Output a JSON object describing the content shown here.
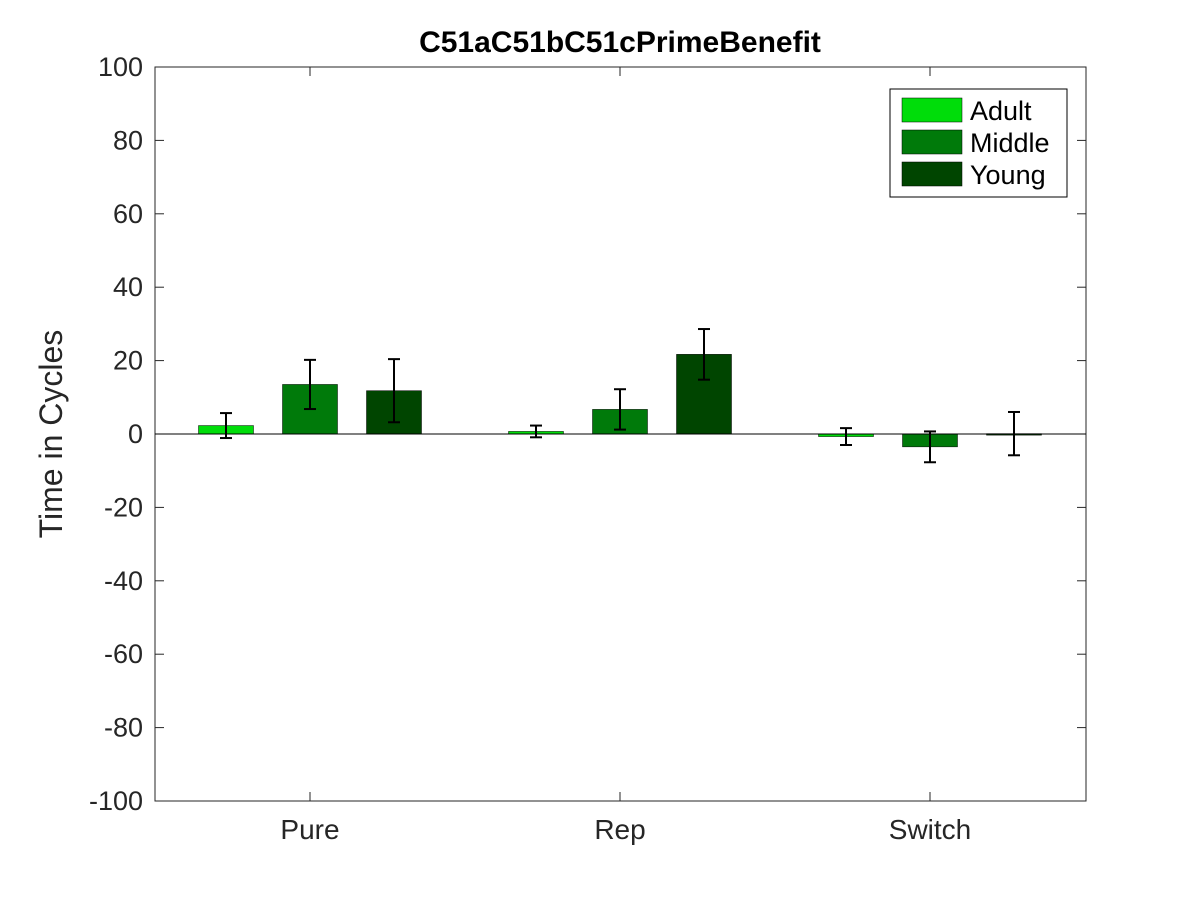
{
  "chart_data": {
    "type": "bar",
    "title": "C51aC51bC51cPrimeBenefit",
    "xlabel": "",
    "ylabel": "Time in Cycles",
    "ylim": [
      -100,
      100
    ],
    "yticks": [
      100,
      80,
      60,
      40,
      20,
      0,
      -20,
      -40,
      -60,
      -80,
      -100
    ],
    "categories": [
      "Pure",
      "Rep",
      "Switch"
    ],
    "series": [
      {
        "name": "Adult",
        "color": "#00dd0a",
        "values": [
          2.3,
          0.7,
          -0.7
        ],
        "errors": [
          3.4,
          1.6,
          2.3
        ]
      },
      {
        "name": "Middle",
        "color": "#007a0a",
        "values": [
          13.5,
          6.7,
          -3.5
        ],
        "errors": [
          6.7,
          5.5,
          4.2
        ]
      },
      {
        "name": "Young",
        "color": "#004500",
        "values": [
          11.8,
          21.7,
          0.1
        ],
        "errors": [
          8.6,
          6.9,
          5.9
        ]
      }
    ],
    "legend": {
      "position": "top-right"
    },
    "grid": false
  }
}
